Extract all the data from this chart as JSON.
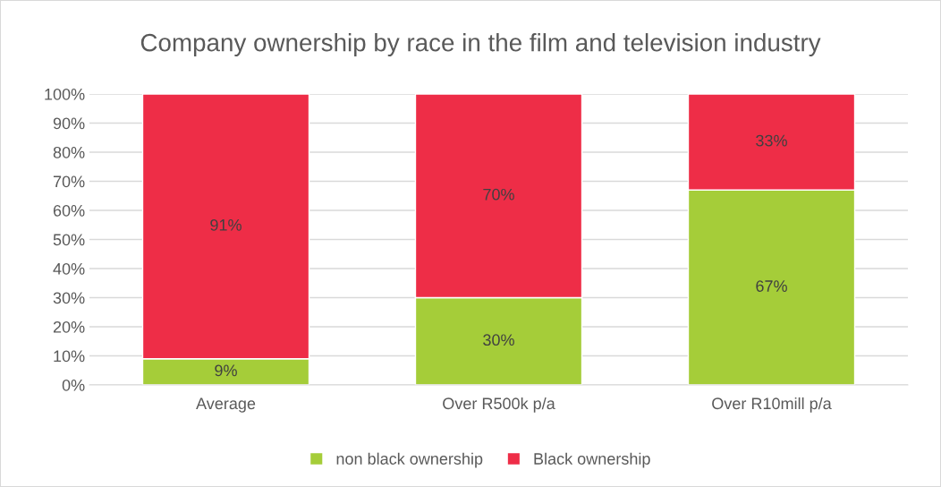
{
  "chart_data": {
    "type": "bar",
    "title": "Company ownership by race in the film and television industry",
    "categories": [
      "Average",
      "Over R500k p/a",
      "Over R10mill p/a"
    ],
    "stacked": true,
    "series": [
      {
        "name": "non black ownership",
        "color": "#a5cd39",
        "values": [
          9,
          30,
          67
        ],
        "value_labels": [
          "9%",
          "30%",
          "67%"
        ]
      },
      {
        "name": "Black ownership",
        "color": "#ee2d47",
        "values": [
          91,
          70,
          33
        ],
        "value_labels": [
          "91%",
          "70%",
          "33%"
        ]
      }
    ],
    "ylim": [
      0,
      100
    ],
    "yticks": [
      {
        "value": 0,
        "label": "0%"
      },
      {
        "value": 10,
        "label": "10%"
      },
      {
        "value": 20,
        "label": "20%"
      },
      {
        "value": 30,
        "label": "30%"
      },
      {
        "value": 40,
        "label": "40%"
      },
      {
        "value": 50,
        "label": "50%"
      },
      {
        "value": 60,
        "label": "60%"
      },
      {
        "value": 70,
        "label": "70%"
      },
      {
        "value": 80,
        "label": "80%"
      },
      {
        "value": 90,
        "label": "90%"
      },
      {
        "value": 100,
        "label": "100%"
      }
    ],
    "grid": "y",
    "legend": "bottom"
  }
}
